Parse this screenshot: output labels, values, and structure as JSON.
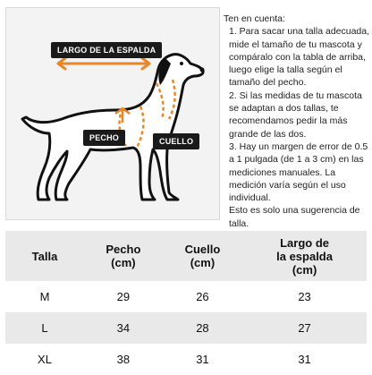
{
  "diagram": {
    "back_length_label": "LARGO DE LA ESPALDA",
    "chest_label": "PECHO",
    "neck_label": "CUELLO",
    "arrow_color": "#e8862a"
  },
  "notes": {
    "heading": "Ten en cuenta:",
    "items": [
      "1. Para sacar una talla adecuada, mide el tamaño de tu mascota y compáralo con la tabla de arriba, luego elige la talla según el tamaño del pecho.",
      "2. Si las medidas de tu mascota se adaptan a dos tallas, te recomendamos pedir la más grande de las dos.",
      "3. Hay un margen de error de 0.5 a 1 pulgada (de 1 a 3 cm) en las mediciones manuales. La medición varía según el uso individual.",
      "Esto es solo una sugerencia de talla."
    ]
  },
  "size_table": {
    "headers": [
      "Talla",
      "Pecho\n(cm)",
      "Cuello\n(cm)",
      "Largo de\nla espalda\n(cm)"
    ],
    "rows": [
      [
        "M",
        "29",
        "26",
        "23"
      ],
      [
        "L",
        "34",
        "28",
        "27"
      ],
      [
        "XL",
        "38",
        "31",
        "31"
      ]
    ]
  }
}
